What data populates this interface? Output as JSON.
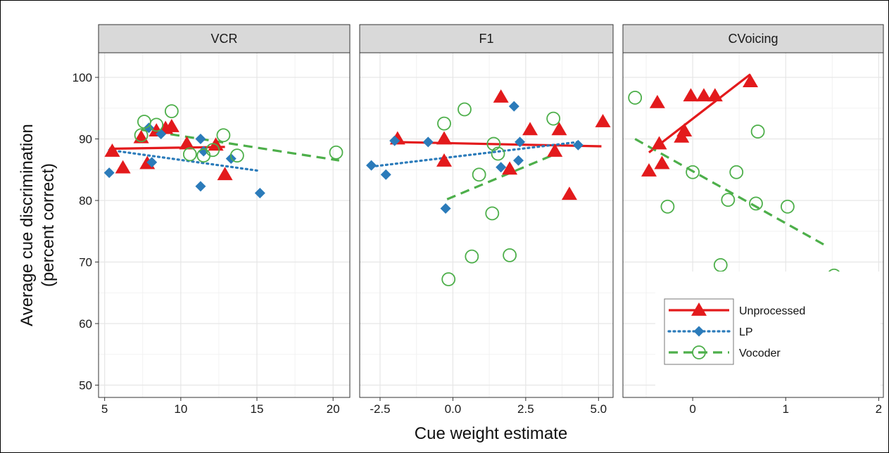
{
  "chart_data": {
    "type": "scatter",
    "xlabel": "Cue weight estimate",
    "ylabel": [
      "Average cue discrimination",
      "(percent correct)"
    ],
    "ylim": [
      48,
      104
    ],
    "yticks": [
      50,
      60,
      70,
      80,
      90,
      100
    ],
    "grid": true,
    "legend_position": "bottom-right (inside CVoicing panel)",
    "colors": {
      "Unprocessed": "#e31a1c",
      "LP": "#2b7bba",
      "Vocoder": "#4daf4a"
    },
    "legend": [
      {
        "name": "Unprocessed",
        "line": "solid",
        "marker": "triangle"
      },
      {
        "name": "LP",
        "line": "dotted",
        "marker": "diamond"
      },
      {
        "name": "Vocoder",
        "line": "dashed",
        "marker": "open-circle"
      }
    ],
    "panels": [
      {
        "title": "VCR",
        "xlim": [
          4.6,
          21.1
        ],
        "xticks": [
          5,
          10,
          15,
          20
        ],
        "xtick_labels": [
          "5",
          "10",
          "15",
          "20"
        ],
        "series": [
          {
            "name": "Unprocessed",
            "points": [
              [
                5.5,
                88.0
              ],
              [
                6.2,
                85.3
              ],
              [
                7.4,
                90.2
              ],
              [
                7.8,
                86.0
              ],
              [
                8.4,
                91.3
              ],
              [
                9.0,
                91.7
              ],
              [
                9.4,
                92.0
              ],
              [
                10.4,
                89.2
              ],
              [
                12.3,
                89.0
              ],
              [
                12.9,
                84.2
              ]
            ],
            "fit": [
              [
                5.3,
                88.4
              ],
              [
                12.9,
                88.7
              ]
            ]
          },
          {
            "name": "LP",
            "points": [
              [
                5.3,
                84.5
              ],
              [
                7.9,
                91.8
              ],
              [
                8.1,
                86.2
              ],
              [
                8.7,
                90.8
              ],
              [
                11.3,
                90.0
              ],
              [
                11.3,
                82.3
              ],
              [
                11.5,
                88.0
              ],
              [
                13.3,
                86.8
              ],
              [
                15.2,
                81.2
              ]
            ],
            "fit": [
              [
                5.3,
                88.2
              ],
              [
                15.2,
                84.8
              ]
            ]
          },
          {
            "name": "Vocoder",
            "points": [
              [
                7.4,
                90.6
              ],
              [
                7.6,
                92.8
              ],
              [
                8.4,
                92.3
              ],
              [
                9.4,
                94.5
              ],
              [
                10.6,
                87.5
              ],
              [
                11.5,
                87.3
              ],
              [
                12.1,
                88.2
              ],
              [
                12.8,
                90.6
              ],
              [
                13.7,
                87.3
              ],
              [
                20.2,
                87.8
              ]
            ],
            "fit": [
              [
                7.4,
                91.5
              ],
              [
                20.4,
                86.5
              ]
            ]
          }
        ]
      },
      {
        "title": "F1",
        "xlim": [
          -3.2,
          5.5
        ],
        "xticks": [
          -2.5,
          0,
          2.5,
          5
        ],
        "xtick_labels": [
          "-2.5",
          "0.0",
          "2.5",
          "5.0"
        ],
        "series": [
          {
            "name": "Unprocessed",
            "points": [
              [
                -1.9,
                90.0
              ],
              [
                -0.3,
                90.0
              ],
              [
                -0.3,
                86.4
              ],
              [
                1.65,
                96.8
              ],
              [
                1.95,
                85.1
              ],
              [
                2.65,
                91.5
              ],
              [
                3.5,
                88.0
              ],
              [
                3.65,
                91.5
              ],
              [
                4.0,
                81.0
              ],
              [
                5.15,
                92.8
              ]
            ],
            "fit": [
              [
                -2.0,
                89.5
              ],
              [
                5.1,
                88.8
              ]
            ]
          },
          {
            "name": "LP",
            "points": [
              [
                -2.8,
                85.7
              ],
              [
                -2.3,
                84.2
              ],
              [
                -2.0,
                89.7
              ],
              [
                -0.85,
                89.5
              ],
              [
                -0.25,
                78.7
              ],
              [
                1.65,
                85.4
              ],
              [
                2.1,
                95.3
              ],
              [
                2.25,
                86.5
              ],
              [
                2.3,
                89.5
              ],
              [
                4.3,
                89.0
              ]
            ],
            "fit": [
              [
                -2.8,
                85.5
              ],
              [
                4.3,
                89.5
              ]
            ]
          },
          {
            "name": "Vocoder",
            "points": [
              [
                -0.3,
                92.5
              ],
              [
                -0.15,
                67.2
              ],
              [
                0.4,
                94.8
              ],
              [
                0.65,
                70.9
              ],
              [
                0.9,
                84.2
              ],
              [
                1.35,
                77.9
              ],
              [
                1.4,
                89.2
              ],
              [
                1.55,
                87.6
              ],
              [
                1.95,
                71.1
              ],
              [
                3.45,
                93.3
              ]
            ],
            "fit": [
              [
                -0.2,
                80.2
              ],
              [
                3.5,
                87.5
              ]
            ]
          }
        ]
      },
      {
        "title": "CVoicing",
        "xlim": [
          -0.75,
          2.05
        ],
        "xticks": [
          0,
          1,
          2
        ],
        "xtick_labels": [
          "0",
          "1",
          "2"
        ],
        "series": [
          {
            "name": "Unprocessed",
            "points": [
              [
                -0.47,
                84.8
              ],
              [
                -0.38,
                95.9
              ],
              [
                -0.36,
                89.2
              ],
              [
                -0.33,
                86.0
              ],
              [
                -0.12,
                90.3
              ],
              [
                -0.09,
                91.3
              ],
              [
                -0.02,
                97.0
              ],
              [
                0.12,
                97.0
              ],
              [
                0.24,
                97.0
              ],
              [
                0.62,
                99.3
              ]
            ],
            "fit": [
              [
                -0.47,
                87.8
              ],
              [
                0.62,
                100.5
              ]
            ]
          },
          {
            "name": "Vocoder",
            "points": [
              [
                -0.62,
                96.7
              ],
              [
                -0.27,
                79.0
              ],
              [
                0.0,
                84.6
              ],
              [
                0.3,
                69.5
              ],
              [
                0.38,
                80.1
              ],
              [
                0.47,
                84.6
              ],
              [
                0.68,
                79.5
              ],
              [
                0.7,
                91.2
              ],
              [
                1.02,
                79.0
              ],
              [
                1.52,
                67.8
              ]
            ],
            "fit": [
              [
                -0.62,
                90.0
              ],
              [
                1.45,
                72.5
              ]
            ]
          }
        ]
      }
    ]
  }
}
